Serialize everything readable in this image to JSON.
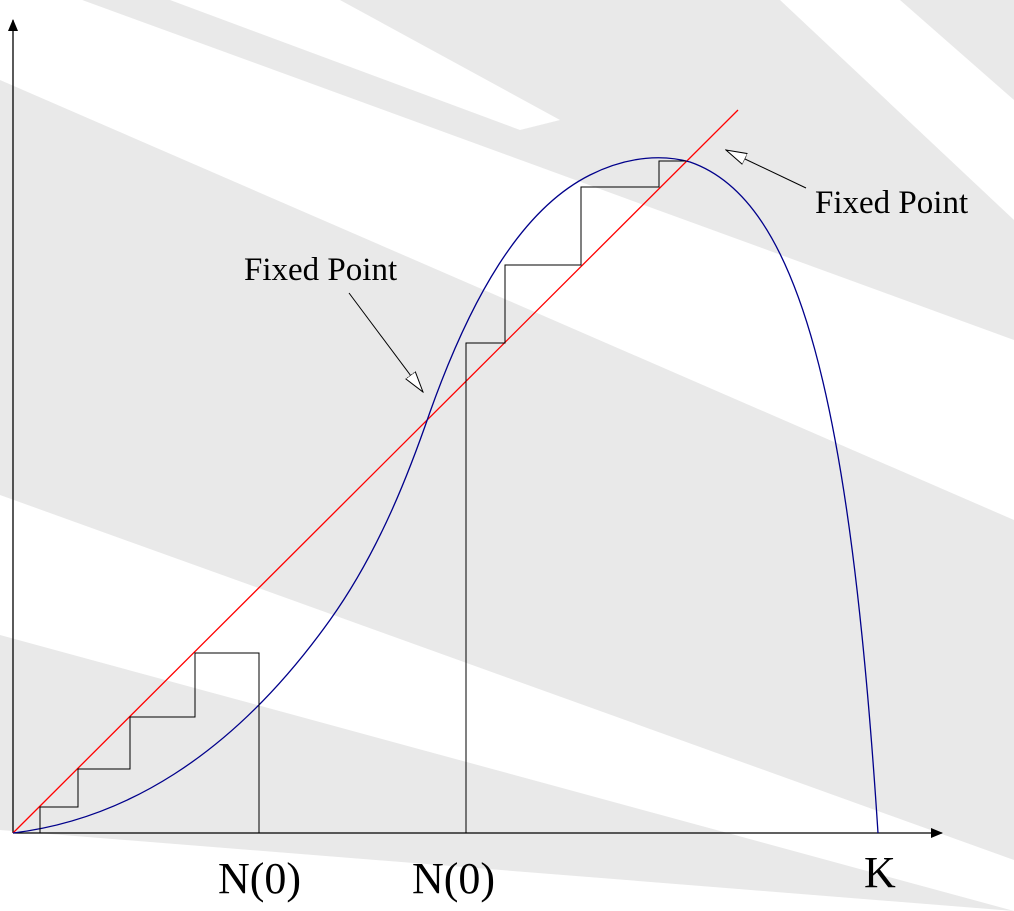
{
  "labels": {
    "fixed_point_left": "Fixed Point",
    "fixed_point_right": "Fixed Point",
    "n0_left": "N(0)",
    "n0_right": "N(0)",
    "k": "K"
  },
  "colors": {
    "background": "#ffffff",
    "stripes": "#e9e9e9",
    "axes": "#000000",
    "diagonal": "#ff0000",
    "curve": "#00008b",
    "cobweb": "#000000"
  }
}
